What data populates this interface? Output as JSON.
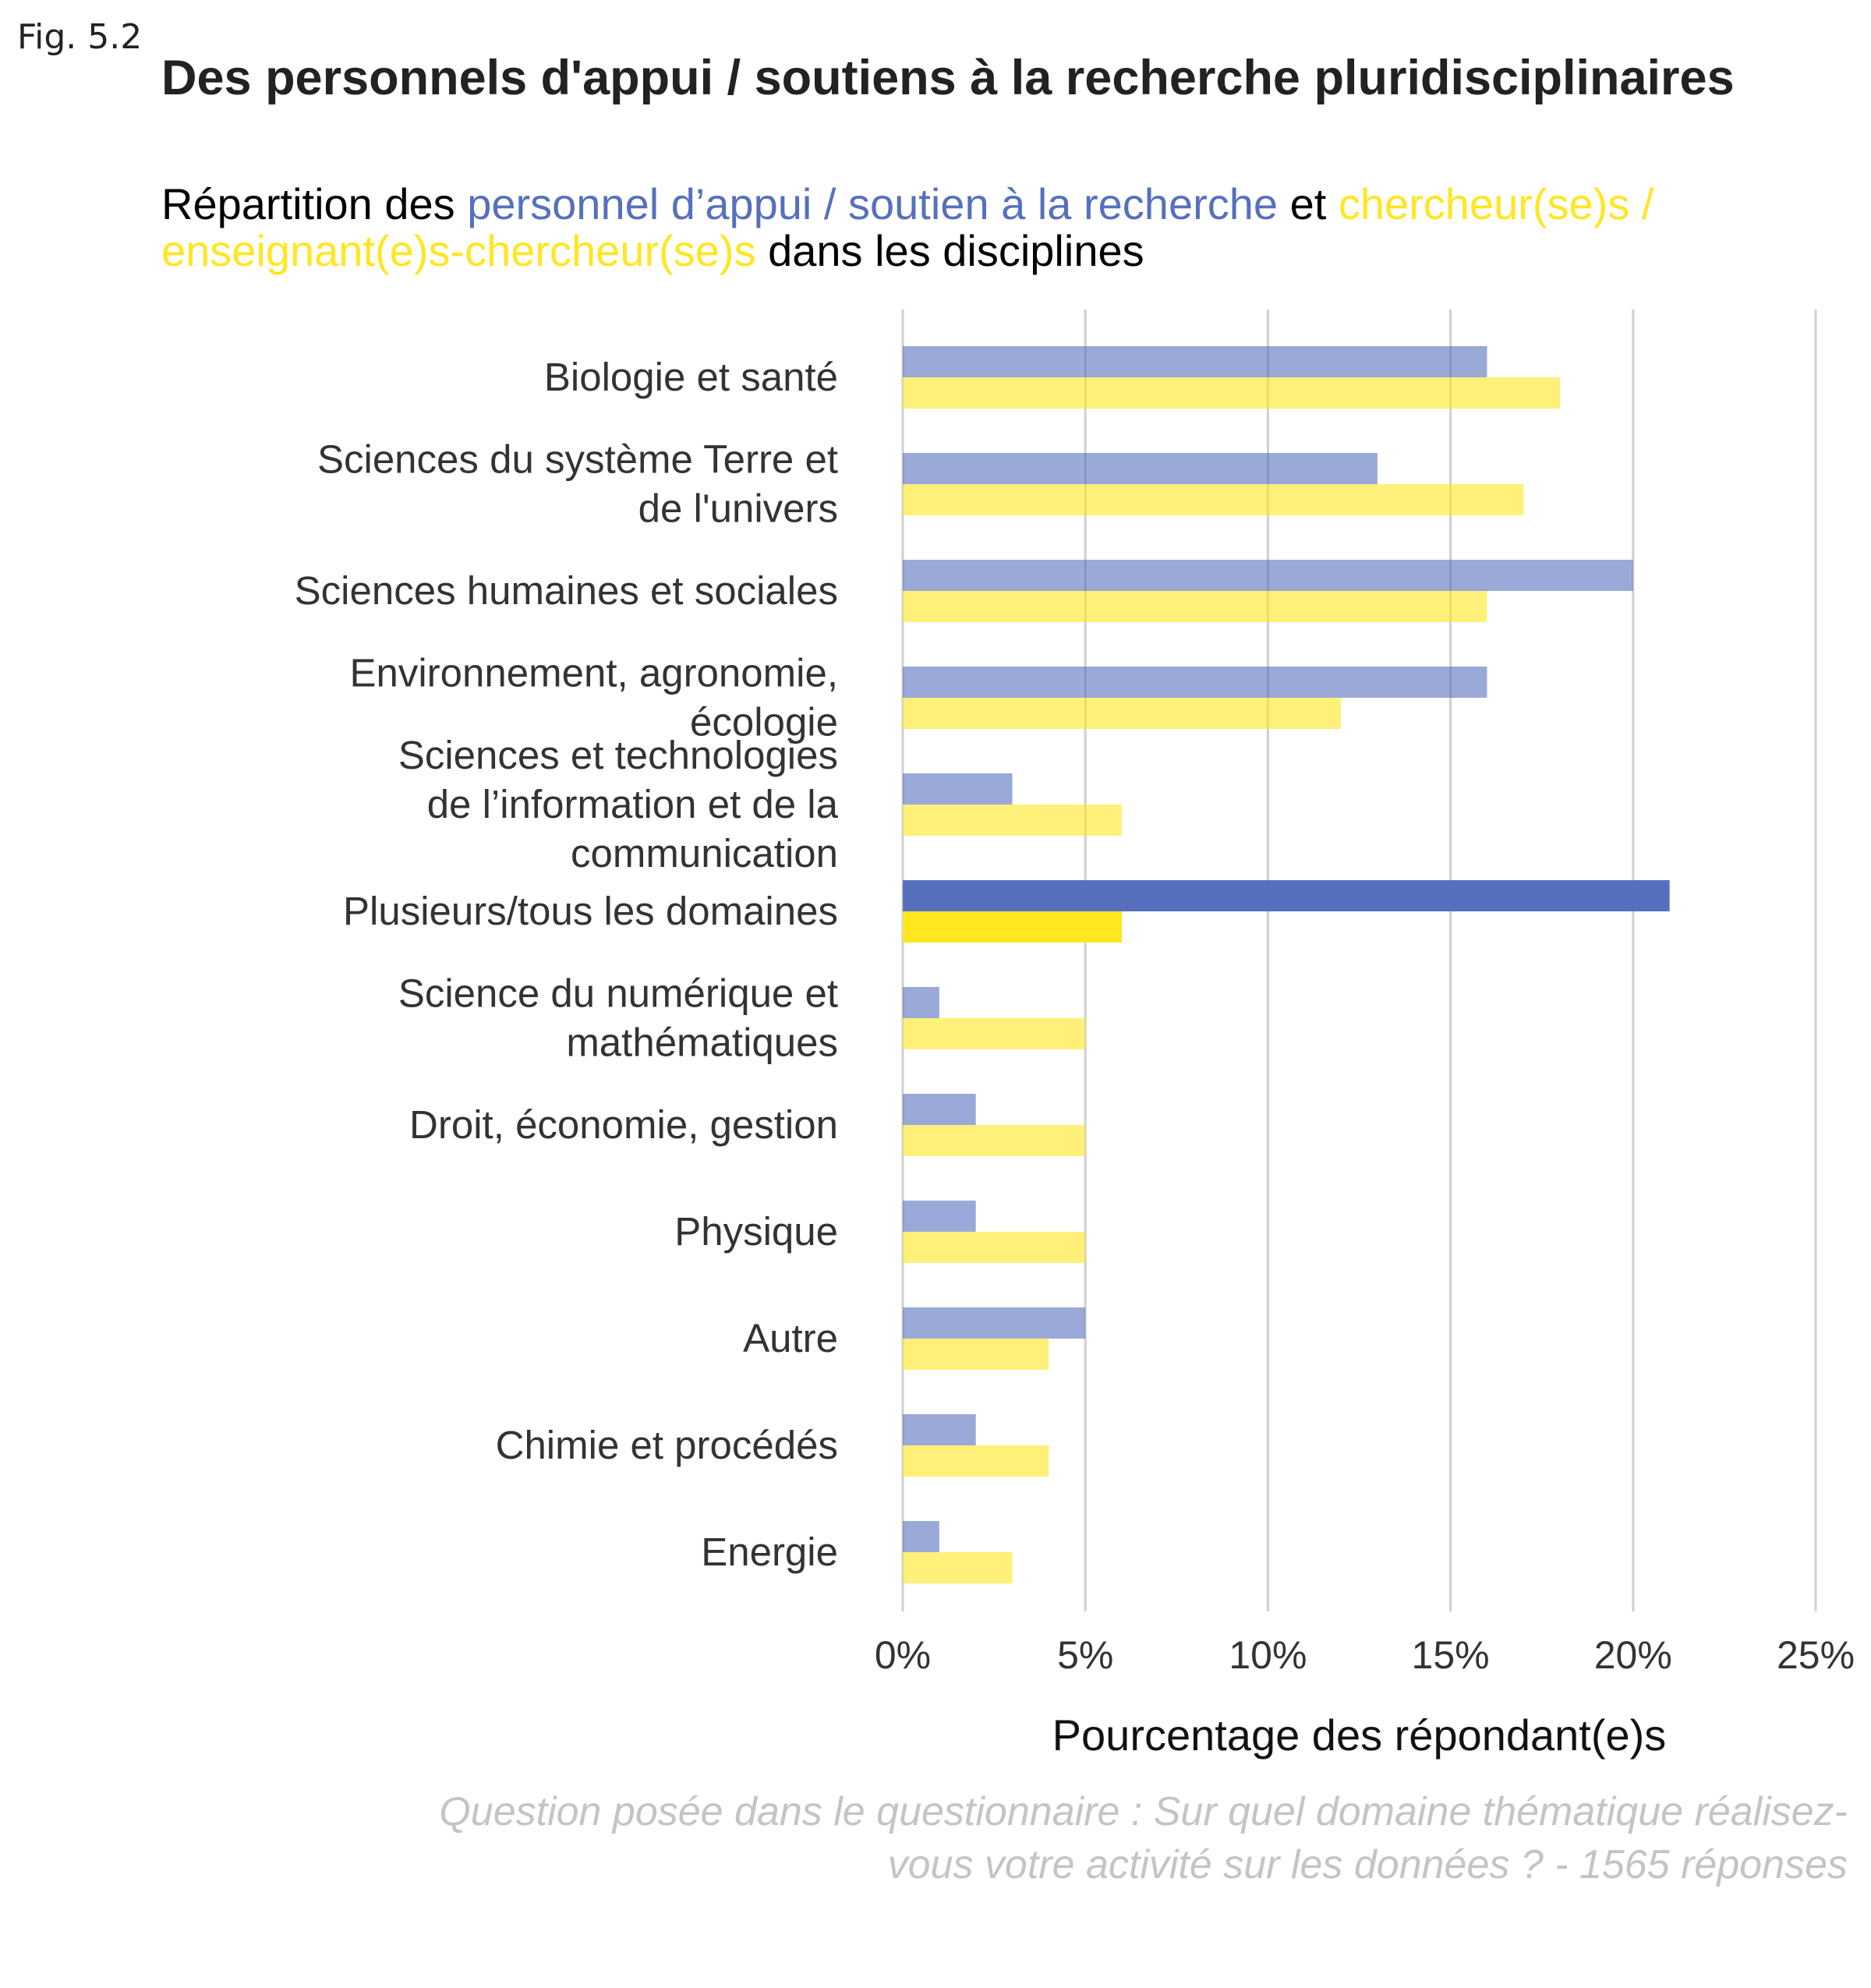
{
  "figure_label": "Fig. 5.2",
  "chart_data": {
    "type": "bar",
    "orientation": "horizontal",
    "title": "Des personnels d'appui / soutiens à la recherche pluridisciplinaires",
    "subtitle": {
      "part1": "Répartition des ",
      "series1_text": "personnel d’appui / soutien à la recherche",
      "part2": " et ",
      "series2_text": "chercheur(se)s / enseignant(e)s-chercheur(se)s",
      "part3": " dans les disciplines"
    },
    "categories": [
      [
        "Biologie et santé"
      ],
      [
        "Sciences du système Terre et",
        "de l'univers"
      ],
      [
        "Sciences humaines et sociales"
      ],
      [
        "Environnement, agronomie,",
        "écologie"
      ],
      [
        "Sciences et technologies",
        "de l’information et de la",
        "communication"
      ],
      [
        "Plusieurs/tous les domaines"
      ],
      [
        "Science du numérique et",
        "mathématiques"
      ],
      [
        "Droit, économie, gestion"
      ],
      [
        "Physique"
      ],
      [
        "Autre"
      ],
      [
        "Chimie et procédés"
      ],
      [
        "Energie"
      ]
    ],
    "series": [
      {
        "name": "personnel d’appui / soutien à la recherche",
        "color": "#5670bd",
        "values": [
          16,
          13,
          20,
          16,
          3,
          21,
          1,
          2,
          2,
          5,
          2,
          1
        ]
      },
      {
        "name": "chercheur(se)s / enseignant(e)s-chercheur(se)s",
        "color": "#ffe621",
        "values": [
          18,
          17,
          16,
          12,
          6,
          6,
          5,
          5,
          5,
          4,
          4,
          3
        ]
      }
    ],
    "highlight_category_index": 5,
    "xlabel": "Pourcentage des répondant(e)s",
    "xlim": [
      0,
      25
    ],
    "xticks": [
      0,
      5,
      10,
      15,
      20,
      25
    ],
    "xtick_labels": [
      "0%",
      "5%",
      "10%",
      "15%",
      "20%",
      "25%"
    ],
    "grid": "vertical",
    "caption": "Question posée dans le questionnaire : Sur quel domaine thématique réalisez-vous votre activité sur les données ? - 1565 réponses"
  }
}
